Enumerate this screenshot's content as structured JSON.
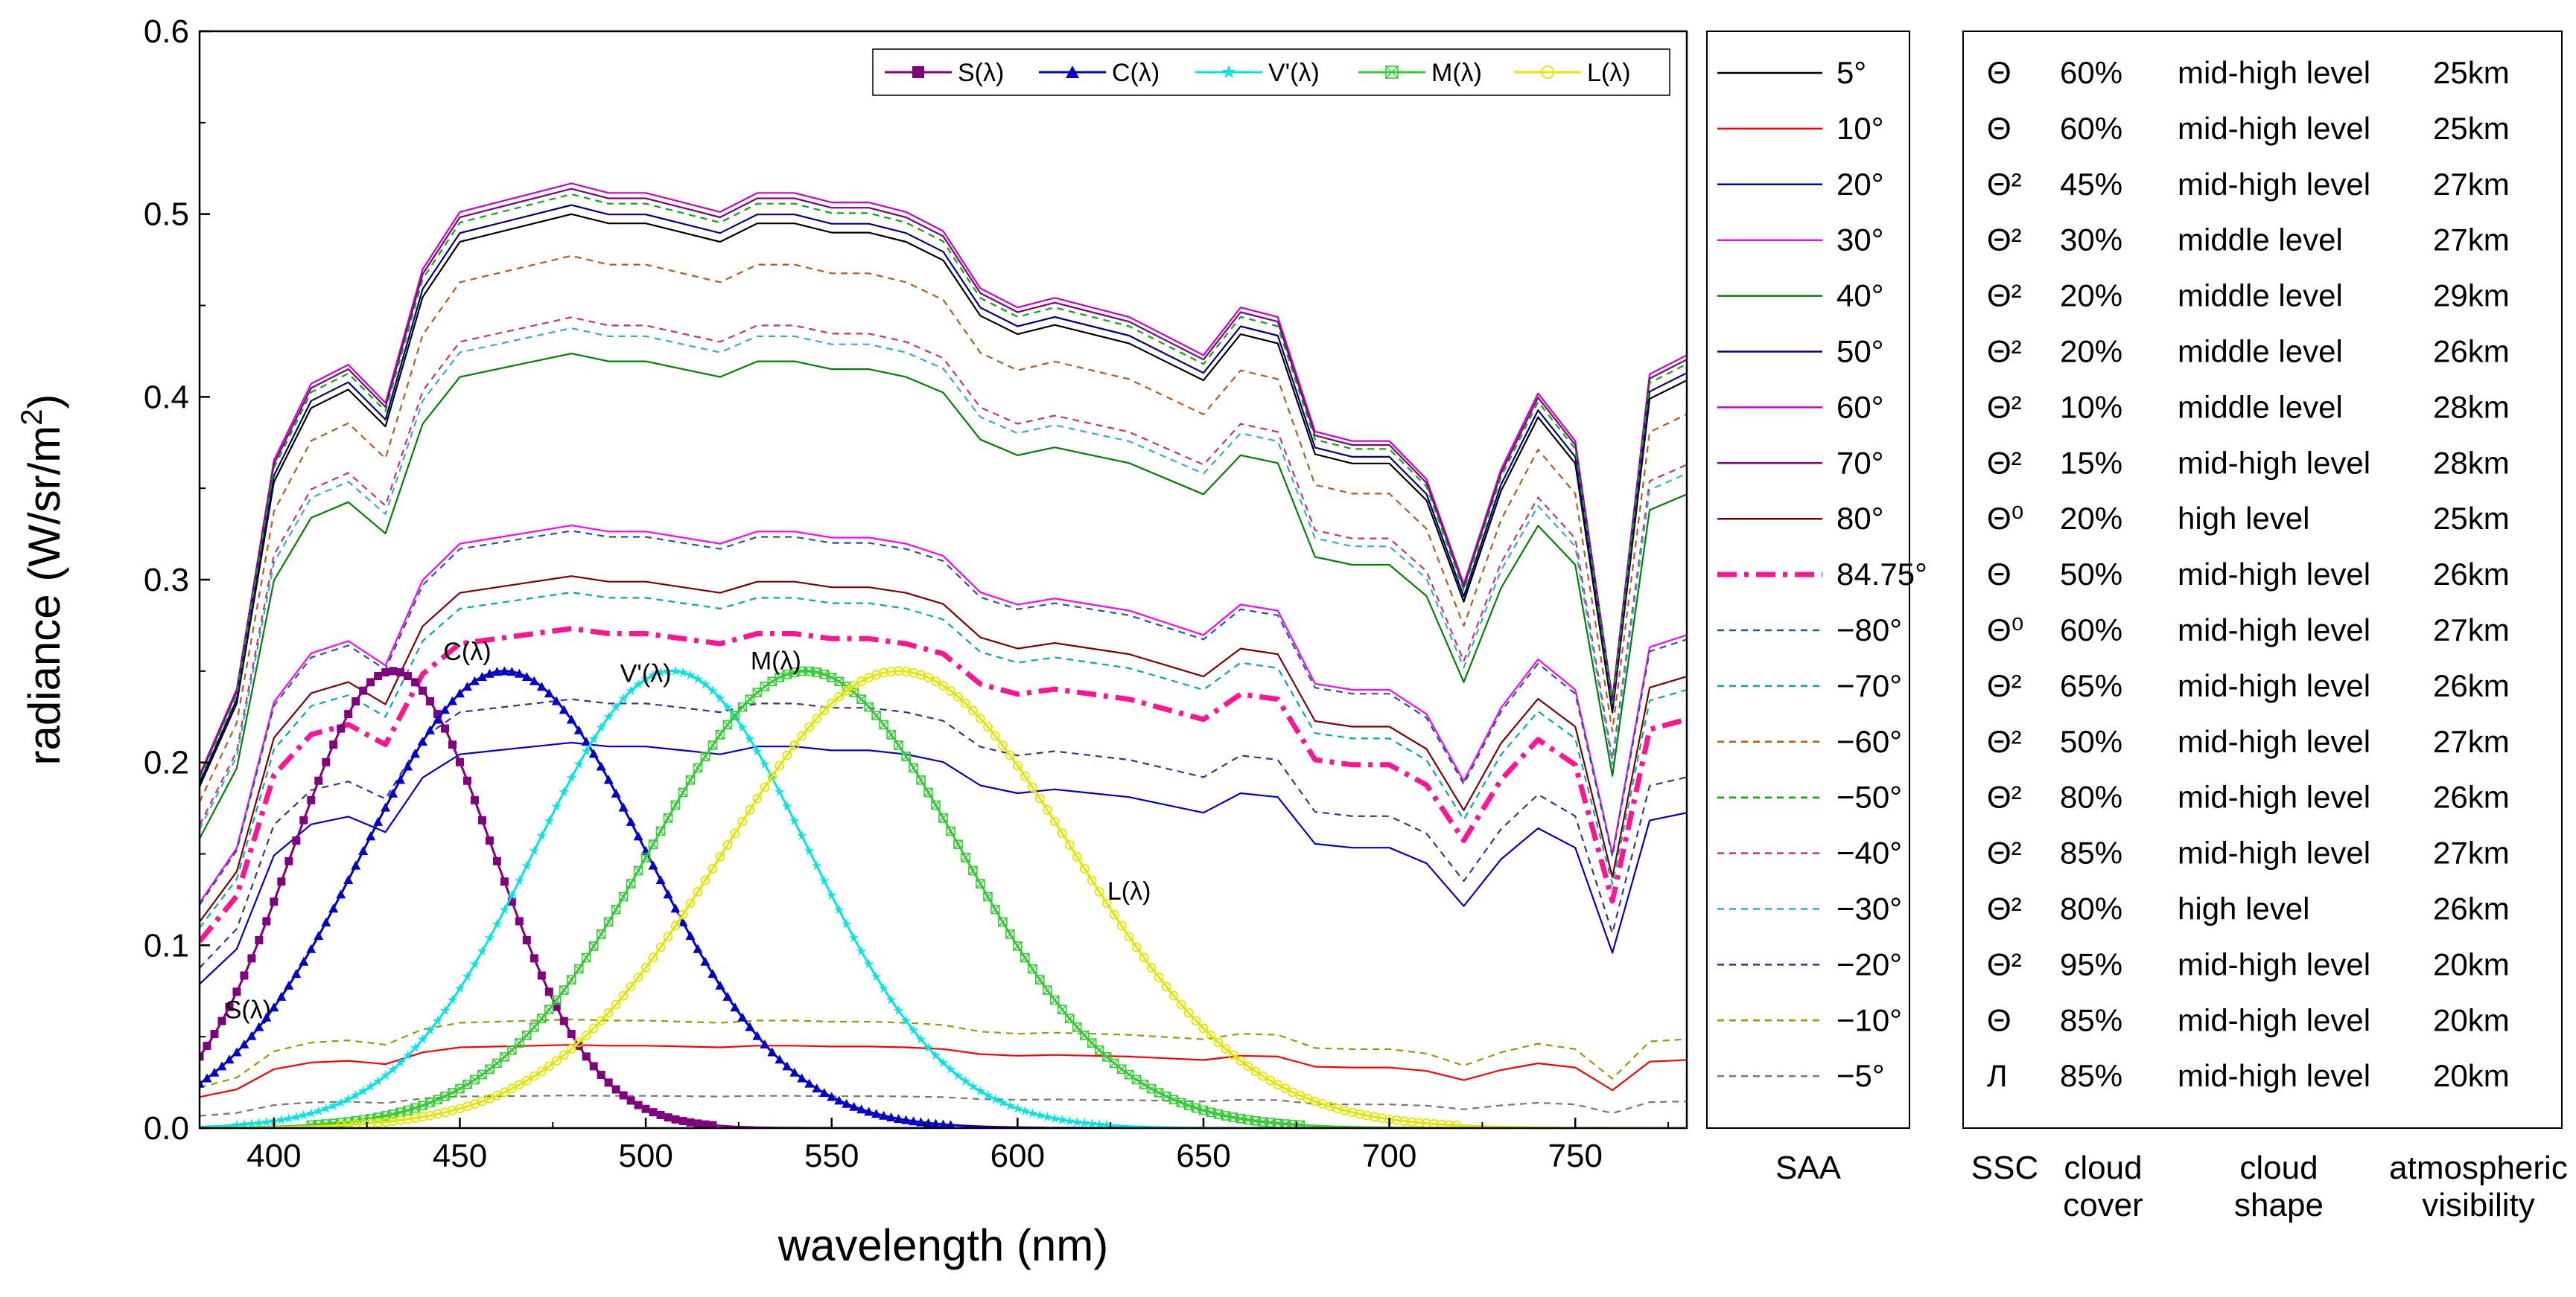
{
  "chart_data": {
    "type": "line",
    "xlabel": "wavelength (nm)",
    "ylabel": "radiance (W/sr/m",
    "ylabel_sup": "2",
    "ylabel_close": ")",
    "xlim": [
      380,
      780
    ],
    "ylim": [
      0,
      0.6
    ],
    "xticks": [
      400,
      450,
      500,
      550,
      600,
      650,
      700,
      750
    ],
    "yticks": [
      "0.0",
      "0.1",
      "0.2",
      "0.3",
      "0.4",
      "0.5",
      "0.6"
    ],
    "legend_position": "top-right",
    "cone_legend": [
      {
        "label": "S(λ)",
        "color": "#800080",
        "marker": "square"
      },
      {
        "label": "C(λ)",
        "color": "#0000cc",
        "marker": "triangle"
      },
      {
        "label": "V'(λ)",
        "color": "#00e5e5",
        "marker": "star"
      },
      {
        "label": "M(λ)",
        "color": "#33cc33",
        "marker": "crossed-square"
      },
      {
        "label": "L(λ)",
        "color": "#e5e500",
        "marker": "circle"
      }
    ],
    "cone_series": [
      {
        "name": "S(λ)",
        "label": "S(λ)",
        "peak_nm": 432,
        "sigma_nm": 27,
        "peak_value": 0.25,
        "color": "#800080"
      },
      {
        "name": "C(λ)",
        "label": "C(λ)",
        "peak_nm": 462,
        "sigma_nm": 38,
        "peak_value": 0.25,
        "color": "#0000cc"
      },
      {
        "name": "V'(λ)",
        "label": "V'(λ)",
        "peak_nm": 507,
        "sigma_nm": 37,
        "peak_value": 0.25,
        "color": "#00e5e5"
      },
      {
        "name": "M(λ)",
        "label": "M(λ)",
        "peak_nm": 543,
        "sigma_nm": 42,
        "peak_value": 0.25,
        "color": "#33cc33"
      },
      {
        "name": "L(λ)",
        "label": "L(λ)",
        "peak_nm": 568,
        "sigma_nm": 47,
        "peak_value": 0.25,
        "color": "#e5e500"
      }
    ],
    "radiance_wavelengths": [
      380,
      390,
      400,
      410,
      420,
      430,
      440,
      450,
      460,
      470,
      480,
      490,
      500,
      510,
      520,
      530,
      540,
      550,
      560,
      570,
      580,
      590,
      600,
      610,
      620,
      630,
      640,
      650,
      660,
      670,
      680,
      690,
      700,
      710,
      720,
      730,
      740,
      750,
      760,
      770,
      780
    ],
    "radiance_shape": [
      0.37,
      0.46,
      0.7,
      0.78,
      0.8,
      0.76,
      0.9,
      0.96,
      0.97,
      0.98,
      0.99,
      0.98,
      0.98,
      0.97,
      0.96,
      0.98,
      0.98,
      0.97,
      0.97,
      0.96,
      0.94,
      0.88,
      0.86,
      0.87,
      0.86,
      0.85,
      0.83,
      0.81,
      0.86,
      0.85,
      0.73,
      0.72,
      0.72,
      0.68,
      0.57,
      0.69,
      0.77,
      0.72,
      0.45,
      0.79,
      0.81
    ],
    "saa_series": [
      {
        "label": "5°",
        "color": "#000000",
        "dash": "solid",
        "peak": 0.505
      },
      {
        "label": "10°",
        "color": "#ff0000",
        "dash": "solid",
        "peak": 0.046
      },
      {
        "label": "20°",
        "color": "#0000cc",
        "dash": "solid",
        "peak": 0.213
      },
      {
        "label": "30°",
        "color": "#ff00ff",
        "dash": "solid",
        "peak": 0.333
      },
      {
        "label": "40°",
        "color": "#008000",
        "dash": "solid",
        "peak": 0.428
      },
      {
        "label": "50°",
        "color": "#000080",
        "dash": "solid",
        "peak": 0.51
      },
      {
        "label": "60°",
        "color": "#cc00cc",
        "dash": "solid",
        "peak": 0.522
      },
      {
        "label": "70°",
        "color": "#800080",
        "dash": "solid",
        "peak": 0.519
      },
      {
        "label": "80°",
        "color": "#800000",
        "dash": "solid",
        "peak": 0.305
      },
      {
        "label": "84.75°",
        "color": "#ff1493",
        "dash": "dashdot",
        "peak": 0.276
      },
      {
        "label": "−80°",
        "color": "#1e5a96",
        "dash": "dash",
        "peak": 0.33
      },
      {
        "label": "−70°",
        "color": "#00aaaa",
        "dash": "dash",
        "peak": 0.296
      },
      {
        "label": "−60°",
        "color": "#b85c1e",
        "dash": "dash",
        "peak": 0.482
      },
      {
        "label": "−50°",
        "color": "#00b000",
        "dash": "dash",
        "peak": 0.516
      },
      {
        "label": "−40°",
        "color": "#cc3366",
        "dash": "dash",
        "peak": 0.448
      },
      {
        "label": "−30°",
        "color": "#33aadd",
        "dash": "dash",
        "peak": 0.442
      },
      {
        "label": "−20°",
        "color": "#333399",
        "dash": "dash",
        "peak": 0.237
      },
      {
        "label": "−10°",
        "color": "#999900",
        "dash": "dash",
        "peak": 0.06
      },
      {
        "label": "−5°",
        "color": "#777777",
        "dash": "dash",
        "peak": 0.018
      }
    ],
    "saa_header": "SAA",
    "table_headers": [
      "SSC",
      "cloud\ncover",
      "cloud\nshape",
      "atmospheric\nvisibility"
    ],
    "conditions_table": [
      [
        "Θ",
        "60%",
        "mid-high level",
        "25km"
      ],
      [
        "Θ",
        "60%",
        "mid-high level",
        "25km"
      ],
      [
        "Θ²",
        "45%",
        "mid-high level",
        "27km"
      ],
      [
        "Θ²",
        "30%",
        "middle level",
        "27km"
      ],
      [
        "Θ²",
        "20%",
        "middle level",
        "29km"
      ],
      [
        "Θ²",
        "20%",
        "middle level",
        "26km"
      ],
      [
        "Θ²",
        "10%",
        "middle level",
        "28km"
      ],
      [
        "Θ²",
        "15%",
        "mid-high level",
        "28km"
      ],
      [
        "Θ⁰",
        "20%",
        "high level",
        "25km"
      ],
      [
        "Θ",
        "50%",
        "mid-high level",
        "26km"
      ],
      [
        "Θ⁰",
        "60%",
        "mid-high level",
        "27km"
      ],
      [
        "Θ²",
        "65%",
        "mid-high level",
        "26km"
      ],
      [
        "Θ²",
        "50%",
        "mid-high level",
        "27km"
      ],
      [
        "Θ²",
        "80%",
        "mid-high level",
        "26km"
      ],
      [
        "Θ²",
        "85%",
        "mid-high level",
        "27km"
      ],
      [
        "Θ²",
        "80%",
        "high level",
        "26km"
      ],
      [
        "Θ²",
        "95%",
        "mid-high level",
        "20km"
      ],
      [
        "Θ",
        "85%",
        "mid-high level",
        "20km"
      ],
      [
        "Л",
        "85%",
        "mid-high level",
        "20km"
      ]
    ]
  }
}
